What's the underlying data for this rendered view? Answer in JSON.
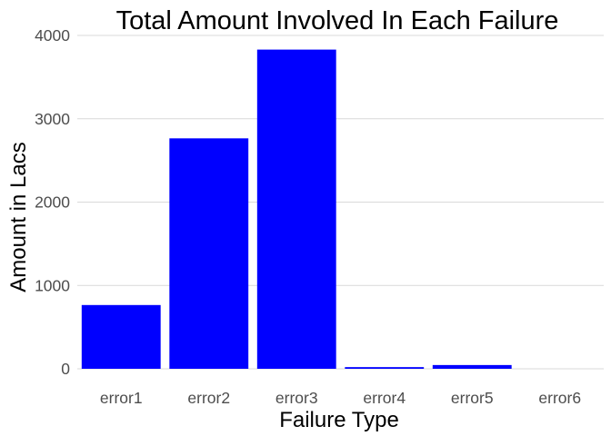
{
  "chart_data": {
    "type": "bar",
    "title": "Total Amount Involved In Each Failure",
    "xlabel": "Failure Type",
    "ylabel": "Amount in Lacs",
    "categories": [
      "error1",
      "error2",
      "error3",
      "error4",
      "error5",
      "error6"
    ],
    "values": [
      765,
      2765,
      3830,
      20,
      45,
      0
    ],
    "ylim": [
      0,
      4000
    ],
    "yticks": [
      0,
      1000,
      2000,
      3000,
      4000
    ],
    "grid": true,
    "legend": "none",
    "bar_color": "#0000ff"
  }
}
